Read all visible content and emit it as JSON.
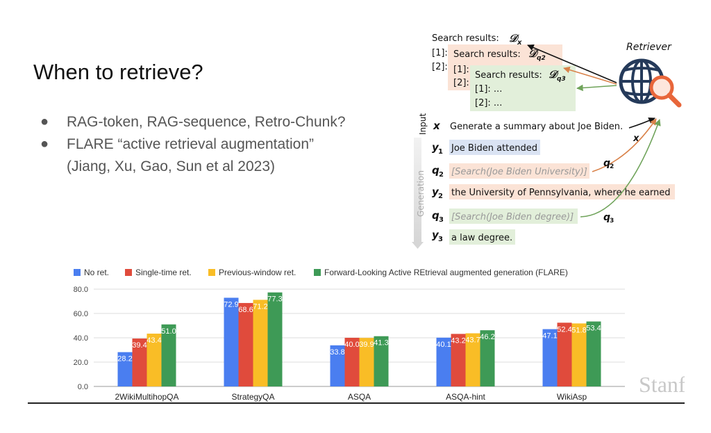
{
  "slide": {
    "title": "When to retrieve?",
    "bullets": [
      "RAG-token, RAG-sequence, Retro-Chunk?",
      "FLARE “active retrieval augmentation”",
      "(Jiang, Xu, Gao, Sun et al 2023)"
    ],
    "watermark": "Stanford"
  },
  "diagram": {
    "retriever_label": "Retriever",
    "search_outer": "Search results:",
    "search_outer_sym": "𝒟",
    "search_outer_sub": "x",
    "mid_title": "Search results:",
    "mid_sub": "q2",
    "inner_title": "Search results:",
    "inner_sub": "q3",
    "idx1": "[1]:",
    "idx2": "[2]:",
    "inner1": "[1]: ...",
    "inner2": "[2]: ...",
    "input_label": "Input",
    "generation_label": "Generation",
    "x_var": "x",
    "x_text": "Generate a summary about Joe Biden.",
    "y1_var": "y",
    "y1_sub": "1",
    "y1_text": "Joe Biden attended",
    "q2_var": "q",
    "q2_sub": "2",
    "q2_text": "[Search(Joe Biden University)]",
    "y2_var": "y",
    "y2_sub": "2",
    "y2_text": "the University of Pennsylvania, where he earned",
    "q3_var": "q",
    "q3_sub": "3",
    "q3_text": "[Search(Joe Biden degree)]",
    "y3_var": "y",
    "y3_sub": "3",
    "y3_text": "a law degree.",
    "arrow_x": "x",
    "arrow_q2": "q",
    "arrow_q2_sub": "2",
    "arrow_q3": "q",
    "arrow_q3_sub": "3",
    "colors": {
      "q2_box": "#fbe3d6",
      "q3_box": "#e2efda",
      "y1_box": "#dae3f3"
    }
  },
  "chart_data": {
    "type": "bar",
    "categories": [
      "2WikiMultihopQA",
      "StrategyQA",
      "ASQA",
      "ASQA-hint",
      "WikiAsp"
    ],
    "series": [
      {
        "name": "No ret.",
        "color": "#4a7ef0",
        "values": [
          28.2,
          72.9,
          33.8,
          40.1,
          47.1
        ]
      },
      {
        "name": "Single-time ret.",
        "color": "#e04b3c",
        "values": [
          39.4,
          68.6,
          40.0,
          43.2,
          52.4
        ]
      },
      {
        "name": "Previous-window ret.",
        "color": "#f9bd26",
        "values": [
          43.4,
          71.2,
          39.9,
          43.7,
          51.8
        ]
      },
      {
        "name": "Forward-Looking Active REtrieval augmented generation (FLARE)",
        "color": "#3e9a56",
        "values": [
          51.0,
          77.3,
          41.3,
          46.2,
          53.4
        ]
      }
    ],
    "value_labels": [
      [
        "28.2",
        "72.9",
        "33.8",
        "40.1",
        "47.1"
      ],
      [
        "39.4",
        "68.6",
        "40.0",
        "43.2",
        "52.4"
      ],
      [
        "43.4",
        "71.2",
        "39.9",
        "43.7",
        "51.8"
      ],
      [
        "51.0",
        "77.3",
        "41.3",
        "46.2",
        "53.4"
      ]
    ],
    "yticks": [
      "0.0",
      "20.0",
      "40.0",
      "60.0",
      "80.0"
    ],
    "ylim": [
      0,
      80
    ],
    "grid": true,
    "legend_position": "top"
  }
}
